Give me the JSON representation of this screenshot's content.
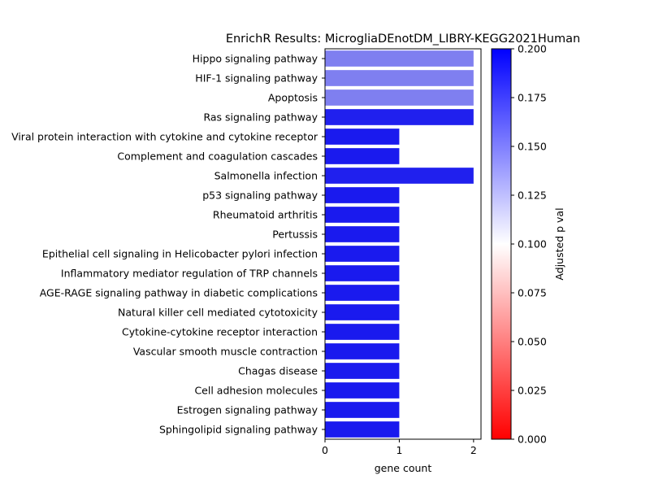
{
  "chart_data": {
    "type": "bar",
    "orientation": "horizontal",
    "title": "EnrichR Results: MicrogliaDEnotDM_LIBRY-KEGG2021Human",
    "xlabel": "gene count",
    "ylabel": "",
    "xlim": [
      0,
      2.1
    ],
    "xticks": [
      0,
      1,
      2
    ],
    "categories": [
      "Hippo signaling pathway",
      "HIF-1 signaling pathway",
      "Apoptosis",
      "Ras signaling pathway",
      "Viral protein interaction with cytokine and cytokine receptor",
      "Complement and coagulation cascades",
      "Salmonella infection",
      "p53 signaling pathway",
      "Rheumatoid arthritis",
      "Pertussis",
      "Epithelial cell signaling in Helicobacter pylori infection",
      "Inflammatory mediator regulation of TRP channels",
      "AGE-RAGE signaling pathway in diabetic complications",
      "Natural killer cell mediated cytotoxicity",
      "Cytokine-cytokine receptor interaction",
      "Vascular smooth muscle contraction",
      "Chagas disease",
      "Cell adhesion molecules",
      "Estrogen signaling pathway",
      "Sphingolipid signaling pathway"
    ],
    "values": [
      2,
      2,
      2,
      2,
      1,
      1,
      2,
      1,
      1,
      1,
      1,
      1,
      1,
      1,
      1,
      1,
      1,
      1,
      1,
      1
    ],
    "bar_colors": [
      "#7f7ff0",
      "#7f7ff0",
      "#7f7ff0",
      "#2020ee",
      "#1a1aee",
      "#1a1aee",
      "#2020ee",
      "#1a1aee",
      "#1a1aee",
      "#1a1aee",
      "#1a1aee",
      "#1a1aee",
      "#1a1aee",
      "#1a1aee",
      "#1a1aee",
      "#1a1aee",
      "#1a1aee",
      "#1a1aee",
      "#1a1aee",
      "#1a1aee"
    ],
    "colorbar": {
      "label": "Adjusted p val",
      "range": [
        0.0,
        0.2
      ],
      "ticks": [
        "0.000",
        "0.025",
        "0.050",
        "0.075",
        "0.100",
        "0.125",
        "0.150",
        "0.175",
        "0.200"
      ],
      "colormap": [
        "#ff0000",
        "#ffffff",
        "#0000ff"
      ]
    },
    "grid": false,
    "legend": "none"
  }
}
